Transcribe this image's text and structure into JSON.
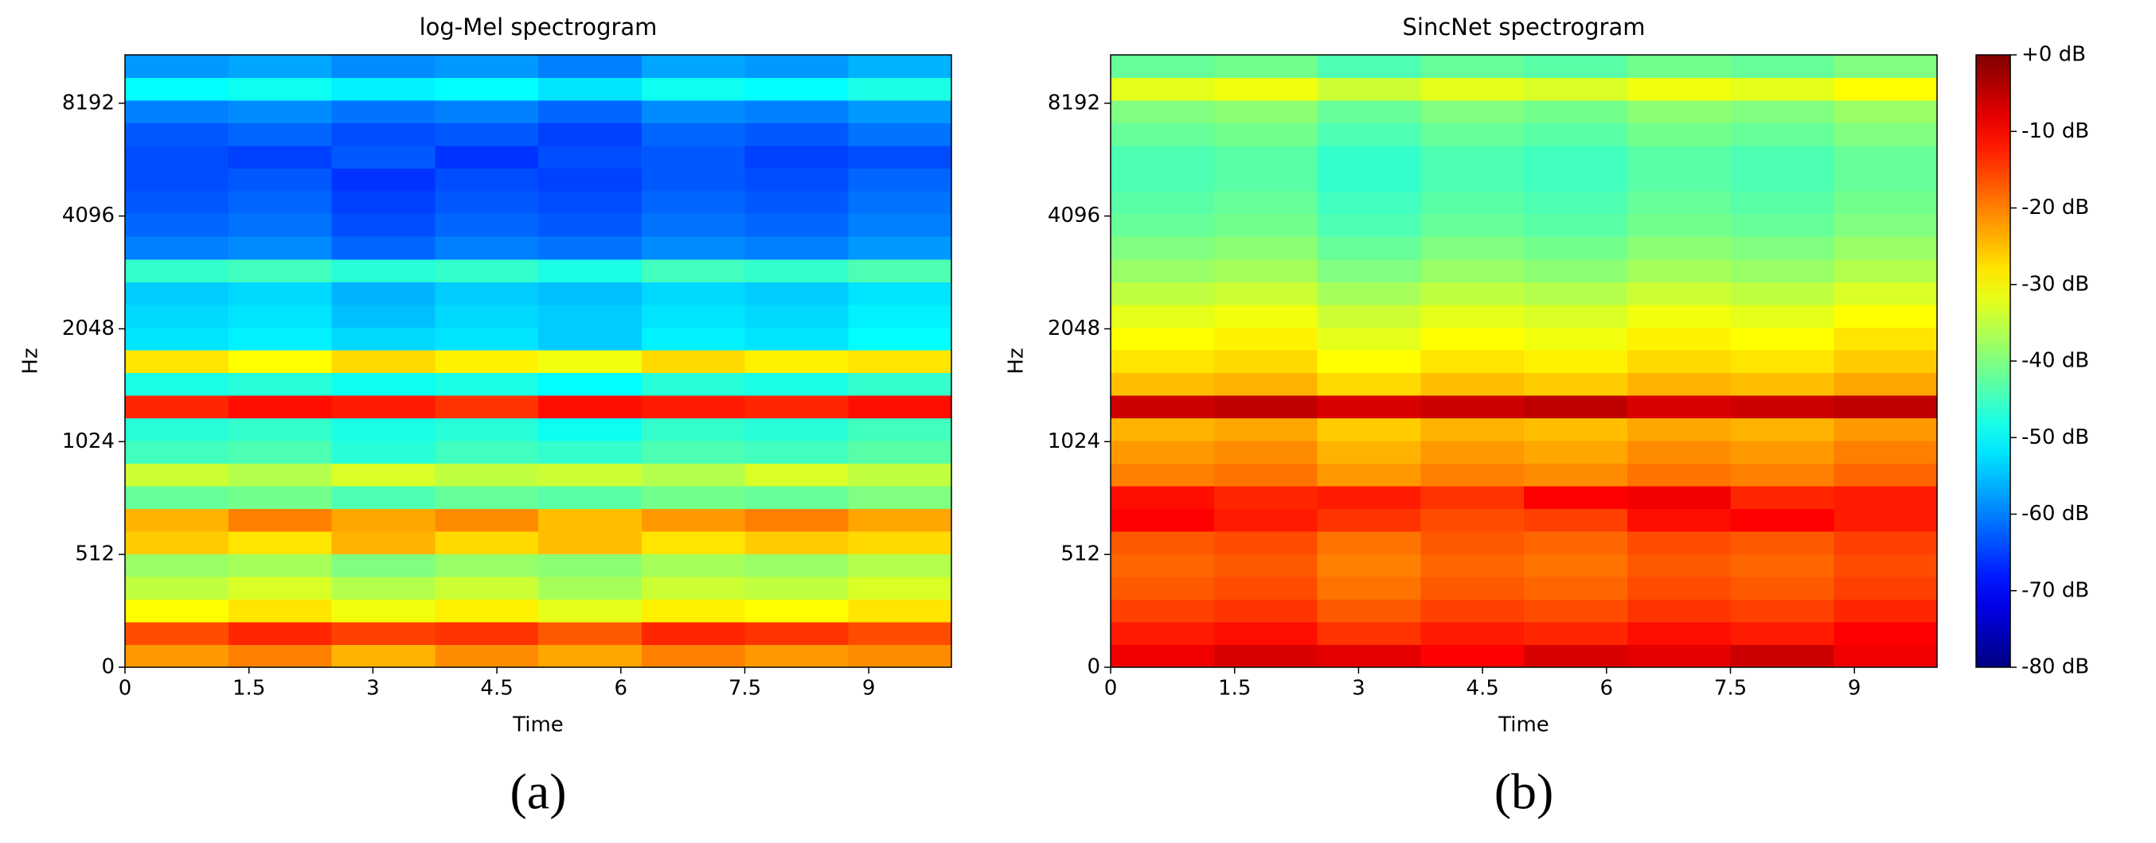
{
  "chart_data": [
    {
      "type": "heatmap",
      "title": "log-Mel spectrogram",
      "xlabel": "Time",
      "ylabel": "Hz",
      "xlim": [
        0,
        10
      ],
      "xticks": [
        0,
        1.5,
        3,
        4.5,
        6,
        7.5,
        9
      ],
      "ylim": [
        0,
        11025
      ],
      "yticks": [
        0,
        512,
        1024,
        2048,
        4096,
        8192
      ],
      "yscale": {
        "type": "symlog",
        "base": 2,
        "linthresh": 512
      },
      "z": [
        [
          -22,
          -20,
          -24,
          -21,
          -23,
          -20,
          -22,
          -21
        ],
        [
          -16,
          -13,
          -15,
          -14,
          -17,
          -13,
          -14,
          -16
        ],
        [
          -30,
          -28,
          -31,
          -29,
          -32,
          -29,
          -30,
          -28
        ],
        [
          -35,
          -33,
          -36,
          -34,
          -37,
          -34,
          -35,
          -33
        ],
        [
          -38,
          -37,
          -40,
          -38,
          -39,
          -37,
          -38,
          -36
        ],
        [
          -26,
          -28,
          -24,
          -27,
          -25,
          -28,
          -26,
          -27
        ],
        [
          -24,
          -20,
          -23,
          -21,
          -25,
          -22,
          -20,
          -23
        ],
        [
          -42,
          -41,
          -44,
          -42,
          -43,
          -41,
          -42,
          -40
        ],
        [
          -34,
          -36,
          -33,
          -35,
          -34,
          -36,
          -33,
          -35
        ],
        [
          -45,
          -44,
          -47,
          -45,
          -46,
          -44,
          -45,
          -43
        ],
        [
          -47,
          -46,
          -48,
          -47,
          -49,
          -46,
          -47,
          -45
        ],
        [
          -13,
          -11,
          -12,
          -14,
          -11,
          -12,
          -13,
          -11
        ],
        [
          -48,
          -47,
          -49,
          -48,
          -50,
          -47,
          -48,
          -46
        ],
        [
          -28,
          -30,
          -27,
          -29,
          -31,
          -27,
          -29,
          -28
        ],
        [
          -52,
          -51,
          -53,
          -52,
          -54,
          -51,
          -52,
          -50
        ],
        [
          -53,
          -52,
          -55,
          -53,
          -54,
          -52,
          -53,
          -51
        ],
        [
          -54,
          -53,
          -56,
          -54,
          -55,
          -53,
          -54,
          -52
        ],
        [
          -46,
          -45,
          -47,
          -46,
          -48,
          -45,
          -46,
          -44
        ],
        [
          -60,
          -59,
          -62,
          -60,
          -61,
          -59,
          -60,
          -58
        ],
        [
          -62,
          -61,
          -64,
          -62,
          -63,
          -61,
          -62,
          -60
        ],
        [
          -63,
          -62,
          -65,
          -63,
          -64,
          -62,
          -63,
          -61
        ],
        [
          -64,
          -63,
          -66,
          -64,
          -65,
          -63,
          -64,
          -62
        ],
        [
          -64,
          -65,
          -63,
          -66,
          -64,
          -63,
          -65,
          -64
        ],
        [
          -63,
          -62,
          -64,
          -63,
          -65,
          -62,
          -63,
          -61
        ],
        [
          -60,
          -59,
          -61,
          -60,
          -62,
          -59,
          -60,
          -58
        ],
        [
          -50,
          -49,
          -51,
          -50,
          -52,
          -49,
          -50,
          -48
        ],
        [
          -58,
          -57,
          -59,
          -58,
          -60,
          -57,
          -58,
          -56
        ]
      ]
    },
    {
      "type": "heatmap",
      "title": "SincNet spectrogram",
      "xlabel": "Time",
      "ylabel": "Hz",
      "xlim": [
        0,
        10
      ],
      "xticks": [
        0,
        1.5,
        3,
        4.5,
        6,
        7.5,
        9
      ],
      "ylim": [
        0,
        11025
      ],
      "yticks": [
        0,
        512,
        1024,
        2048,
        4096,
        8192
      ],
      "yscale": {
        "type": "symlog",
        "base": 2,
        "linthresh": 512
      },
      "z": [
        [
          -9,
          -7,
          -8,
          -10,
          -7,
          -8,
          -6,
          -9
        ],
        [
          -12,
          -11,
          -14,
          -12,
          -13,
          -11,
          -12,
          -10
        ],
        [
          -15,
          -14,
          -17,
          -15,
          -16,
          -14,
          -15,
          -13
        ],
        [
          -17,
          -16,
          -19,
          -17,
          -18,
          -16,
          -17,
          -15
        ],
        [
          -18,
          -17,
          -20,
          -18,
          -19,
          -17,
          -18,
          -16
        ],
        [
          -17,
          -16,
          -19,
          -17,
          -18,
          -16,
          -17,
          -15
        ],
        [
          -10,
          -12,
          -14,
          -16,
          -15,
          -11,
          -10,
          -12
        ],
        [
          -11,
          -13,
          -12,
          -14,
          -10,
          -9,
          -13,
          -12
        ],
        [
          -20,
          -19,
          -22,
          -20,
          -21,
          -19,
          -20,
          -18
        ],
        [
          -22,
          -21,
          -24,
          -22,
          -23,
          -21,
          -22,
          -20
        ],
        [
          -24,
          -23,
          -26,
          -24,
          -25,
          -23,
          -24,
          -22
        ],
        [
          -6,
          -5,
          -7,
          -6,
          -5,
          -7,
          -6,
          -5
        ],
        [
          -25,
          -24,
          -27,
          -25,
          -26,
          -24,
          -25,
          -23
        ],
        [
          -28,
          -27,
          -30,
          -28,
          -29,
          -27,
          -28,
          -26
        ],
        [
          -30,
          -29,
          -32,
          -30,
          -31,
          -29,
          -30,
          -28
        ],
        [
          -32,
          -31,
          -34,
          -32,
          -33,
          -31,
          -32,
          -30
        ],
        [
          -35,
          -34,
          -37,
          -35,
          -36,
          -34,
          -35,
          -33
        ],
        [
          -38,
          -37,
          -40,
          -38,
          -39,
          -37,
          -38,
          -36
        ],
        [
          -40,
          -39,
          -42,
          -40,
          -41,
          -39,
          -40,
          -38
        ],
        [
          -42,
          -41,
          -44,
          -42,
          -43,
          -41,
          -42,
          -40
        ],
        [
          -43,
          -42,
          -45,
          -43,
          -44,
          -42,
          -43,
          -41
        ],
        [
          -44,
          -43,
          -46,
          -44,
          -45,
          -43,
          -44,
          -42
        ],
        [
          -44,
          -43,
          -46,
          -44,
          -45,
          -43,
          -44,
          -42
        ],
        [
          -42,
          -41,
          -44,
          -42,
          -43,
          -41,
          -42,
          -40
        ],
        [
          -40,
          -39,
          -42,
          -40,
          -41,
          -39,
          -40,
          -38
        ],
        [
          -32,
          -31,
          -34,
          -32,
          -33,
          -31,
          -32,
          -30
        ],
        [
          -42,
          -41,
          -44,
          -42,
          -43,
          -41,
          -42,
          -40
        ]
      ]
    }
  ],
  "colorbar": {
    "colormap": "jet",
    "clim": [
      -80,
      0
    ],
    "ticks": [
      {
        "value": 0,
        "label": "+0 dB"
      },
      {
        "value": -10,
        "label": "-10 dB"
      },
      {
        "value": -20,
        "label": "-20 dB"
      },
      {
        "value": -30,
        "label": "-30 dB"
      },
      {
        "value": -40,
        "label": "-40 dB"
      },
      {
        "value": -50,
        "label": "-50 dB"
      },
      {
        "value": -60,
        "label": "-60 dB"
      },
      {
        "value": -70,
        "label": "-70 dB"
      },
      {
        "value": -80,
        "label": "-80 dB"
      }
    ]
  },
  "captions": [
    "(a)",
    "(b)"
  ]
}
